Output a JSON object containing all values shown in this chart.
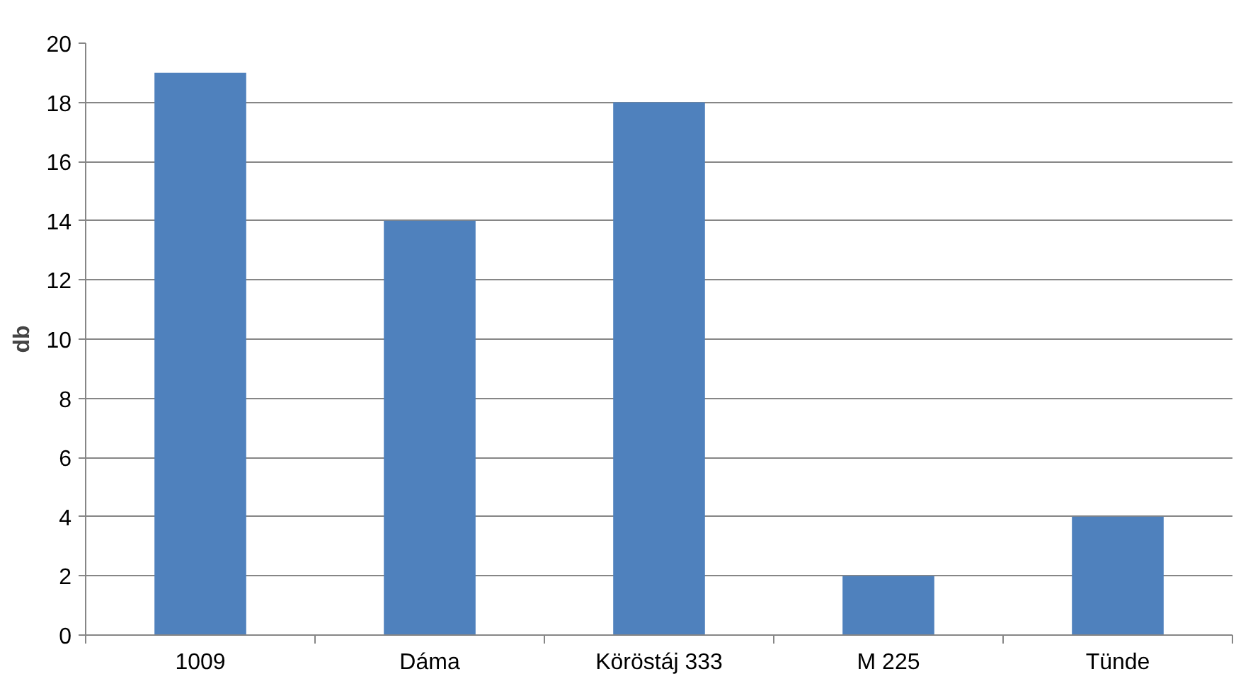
{
  "chart_data": {
    "type": "bar",
    "ylabel": "db",
    "categories": [
      "1009",
      "Dáma",
      "Köröstáj 333",
      "M 225",
      "Tünde"
    ],
    "values": [
      19,
      14,
      18,
      2,
      4
    ],
    "color": "#4f81bd",
    "ylim": [
      0,
      20
    ],
    "yticks": [
      0,
      2,
      4,
      6,
      8,
      10,
      12,
      14,
      16,
      18,
      20
    ],
    "grid": "y"
  }
}
